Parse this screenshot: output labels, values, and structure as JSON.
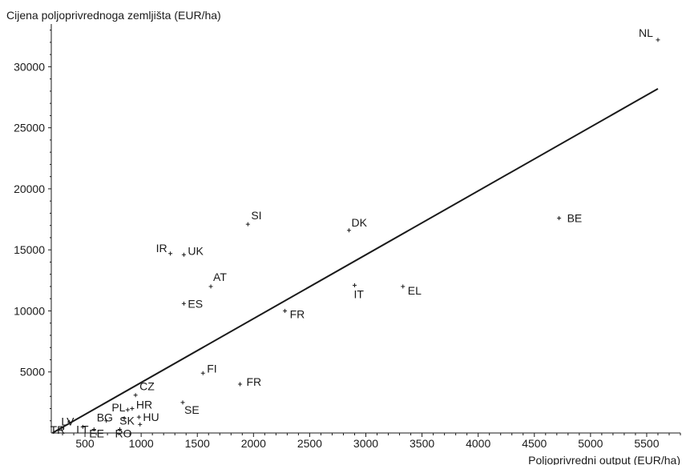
{
  "chart_data": {
    "type": "scatter",
    "ylabel": "Cijena poljoprivrednoga zemljišta (EUR/ha)",
    "xlabel": "Poljoprivredni output (EUR/ha)",
    "xlim": [
      200,
      5800
    ],
    "ylim": [
      0,
      33500
    ],
    "x_ticks": [
      500,
      1000,
      1500,
      2000,
      2500,
      3000,
      3500,
      4000,
      4500,
      5000,
      5500
    ],
    "y_ticks": [
      5000,
      10000,
      15000,
      20000,
      25000,
      30000
    ],
    "grid": false,
    "points": [
      {
        "label": "NL",
        "x": 5600,
        "y": 32200
      },
      {
        "label": "BE",
        "x": 4720,
        "y": 17600
      },
      {
        "label": "DK",
        "x": 2850,
        "y": 16600
      },
      {
        "label": "SI",
        "x": 1950,
        "y": 17100
      },
      {
        "label": "IR",
        "x": 1260,
        "y": 14700
      },
      {
        "label": "UK",
        "x": 1380,
        "y": 14600
      },
      {
        "label": "AT",
        "x": 1620,
        "y": 12000
      },
      {
        "label": "ES",
        "x": 1380,
        "y": 10600
      },
      {
        "label": "IT",
        "x": 2900,
        "y": 12100
      },
      {
        "label": "EL",
        "x": 3330,
        "y": 12000
      },
      {
        "label": "FR",
        "x": 2280,
        "y": 10000
      },
      {
        "label": "FI",
        "x": 1550,
        "y": 4900
      },
      {
        "label": "FR",
        "x": 1880,
        "y": 4000
      },
      {
        "label": "CZ",
        "x": 950,
        "y": 3100
      },
      {
        "label": "SE",
        "x": 1370,
        "y": 2500
      },
      {
        "label": "PL",
        "x": 880,
        "y": 1900
      },
      {
        "label": "HR",
        "x": 920,
        "y": 2000
      },
      {
        "label": "HU",
        "x": 980,
        "y": 1300
      },
      {
        "label": "SK",
        "x": 850,
        "y": 1200
      },
      {
        "label": "BG",
        "x": 690,
        "y": 1000
      },
      {
        "label": "LT",
        "x": 480,
        "y": 500
      },
      {
        "label": "LV",
        "x": 360,
        "y": 900
      },
      {
        "label": "TR",
        "x": 290,
        "y": 400
      },
      {
        "label": "EE",
        "x": 580,
        "y": 300
      },
      {
        "label": "RO",
        "x": 810,
        "y": 300
      },
      {
        "label": "",
        "x": 990,
        "y": 700
      }
    ],
    "trendline": {
      "x": [
        210,
        5600
      ],
      "y": [
        0,
        28200
      ]
    }
  }
}
